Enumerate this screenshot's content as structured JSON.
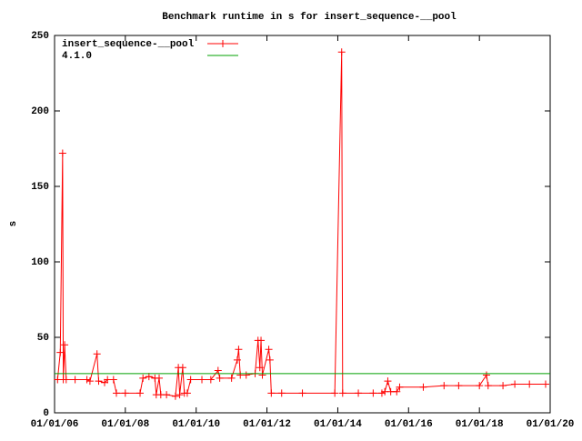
{
  "chart_data": {
    "type": "line",
    "title": "Benchmark runtime in s for insert_sequence-__pool",
    "y_label": "s",
    "xlim": [
      "2006-01-01",
      "2020-01-01"
    ],
    "xticks": [
      {
        "value": "2006-01-01",
        "label": "01/01/06"
      },
      {
        "value": "2008-01-01",
        "label": "01/01/08"
      },
      {
        "value": "2010-01-01",
        "label": "01/01/10"
      },
      {
        "value": "2012-01-01",
        "label": "01/01/12"
      },
      {
        "value": "2014-01-01",
        "label": "01/01/14"
      },
      {
        "value": "2016-01-01",
        "label": "01/01/16"
      },
      {
        "value": "2018-01-01",
        "label": "01/01/18"
      },
      {
        "value": "2020-01-01",
        "label": "01/01/20"
      }
    ],
    "ylim": [
      0,
      250
    ],
    "yticks": [
      0,
      50,
      100,
      150,
      200,
      250
    ],
    "legend": "top-left",
    "series": [
      {
        "name": "insert_sequence-__pool",
        "color": "#ff0000",
        "marker": "plus",
        "x": [
          "2006-02-01",
          "2006-03-01",
          "2006-03-25",
          "2006-04-01",
          "2006-04-15",
          "2006-05-01",
          "2006-08-01",
          "2006-12-01",
          "2007-01-01",
          "2007-03-15",
          "2007-04-01",
          "2007-06-01",
          "2007-07-01",
          "2007-09-01",
          "2007-10-01",
          "2008-01-01",
          "2008-06-01",
          "2008-07-01",
          "2008-09-01",
          "2008-11-01",
          "2008-11-15",
          "2008-12-15",
          "2009-01-01",
          "2009-03-01",
          "2009-06-01",
          "2009-07-01",
          "2009-07-15",
          "2009-08-15",
          "2009-09-01",
          "2009-10-01",
          "2009-11-05",
          "2010-03-01",
          "2010-06-01",
          "2010-08-15",
          "2010-09-01",
          "2011-01-01",
          "2011-03-01",
          "2011-03-15",
          "2011-04-01",
          "2011-06-01",
          "2011-09-01",
          "2011-10-01",
          "2011-10-20",
          "2011-11-01",
          "2011-11-15",
          "2012-01-20",
          "2012-02-01",
          "2012-02-15",
          "2012-06-01",
          "2013-01-01",
          "2013-12-01",
          "2014-02-10",
          "2014-02-20",
          "2014-08-01",
          "2015-01-01",
          "2015-04-01",
          "2015-05-01",
          "2015-06-01",
          "2015-07-01",
          "2015-09-01",
          "2015-10-01",
          "2016-06-01",
          "2017-01-01",
          "2017-06-01",
          "2018-01-01",
          "2018-03-15",
          "2018-04-01",
          "2018-09-01",
          "2019-01-01",
          "2019-06-01",
          "2019-11-15"
        ],
        "values": [
          22,
          40,
          172,
          22,
          45,
          22,
          22,
          22,
          21,
          39,
          21,
          20,
          22,
          22,
          13,
          13,
          13,
          23,
          24,
          23,
          12,
          23,
          12,
          12,
          11,
          30,
          12,
          30,
          13,
          13,
          22,
          22,
          22,
          28,
          23,
          23,
          35,
          42,
          25,
          25,
          26,
          48,
          30,
          48,
          25,
          42,
          35,
          13,
          13,
          13,
          13,
          239,
          13,
          13,
          13,
          13,
          14,
          21,
          14,
          14,
          17,
          17,
          18,
          18,
          18,
          25,
          18,
          18,
          19,
          19,
          19
        ]
      },
      {
        "name": "4.1.0",
        "color": "#00a000",
        "x": [
          "2006-01-01",
          "2020-01-01"
        ],
        "values": [
          26,
          26
        ]
      }
    ]
  }
}
